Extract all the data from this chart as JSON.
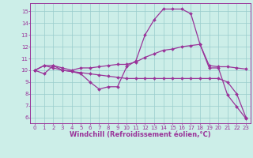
{
  "background_color": "#cceee8",
  "grid_color": "#99cccc",
  "line_color": "#993399",
  "marker": "D",
  "markersize": 2.0,
  "linewidth": 0.9,
  "xlabel": "Windchill (Refroidissement éolien,°C)",
  "xlabel_fontsize": 6.0,
  "tick_fontsize": 5.0,
  "ylabel_ticks": [
    6,
    7,
    8,
    9,
    10,
    11,
    12,
    13,
    14,
    15
  ],
  "xlabel_ticks": [
    0,
    1,
    2,
    3,
    4,
    5,
    6,
    7,
    8,
    9,
    10,
    11,
    12,
    13,
    14,
    15,
    16,
    17,
    18,
    19,
    20,
    21,
    22,
    23
  ],
  "xlim": [
    -0.5,
    23.5
  ],
  "ylim": [
    5.5,
    15.7
  ],
  "lines": [
    [
      10.0,
      9.7,
      10.4,
      10.0,
      9.9,
      9.7,
      9.0,
      8.4,
      8.6,
      8.6,
      10.3,
      10.8,
      13.0,
      14.3,
      15.2,
      15.2,
      15.2,
      14.8,
      12.2,
      10.2,
      10.2,
      7.9,
      6.9,
      5.9
    ],
    [
      10.0,
      10.4,
      10.4,
      10.2,
      10.0,
      10.2,
      10.2,
      10.3,
      10.4,
      10.5,
      10.5,
      10.7,
      11.1,
      11.4,
      11.7,
      11.8,
      12.0,
      12.1,
      12.2,
      10.4,
      10.3,
      10.3,
      10.2,
      10.1
    ],
    [
      10.0,
      10.4,
      10.2,
      10.0,
      9.9,
      9.8,
      9.7,
      9.6,
      9.5,
      9.4,
      9.3,
      9.3,
      9.3,
      9.3,
      9.3,
      9.3,
      9.3,
      9.3,
      9.3,
      9.3,
      9.3,
      9.0,
      8.0,
      6.0
    ]
  ]
}
